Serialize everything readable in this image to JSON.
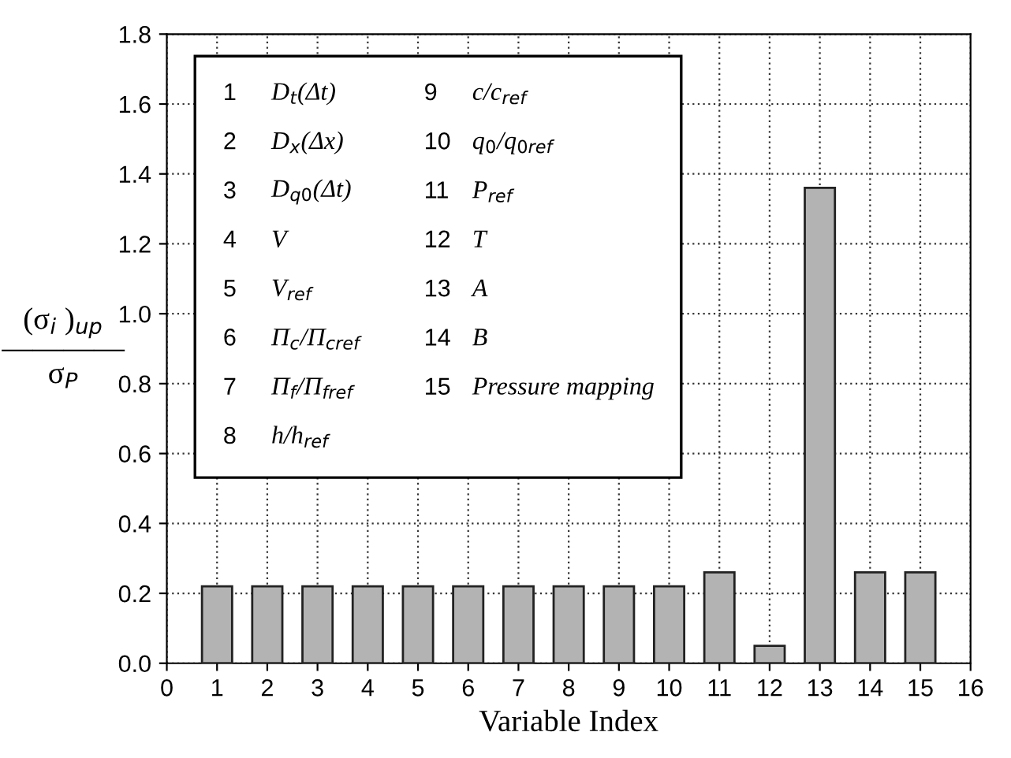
{
  "chart_data": {
    "type": "bar",
    "xlabel": "Variable Index",
    "ylabel": "(σ$_{i}$ )$_{up}$\n――――\nσ$_{P}$",
    "x": [
      1,
      2,
      3,
      4,
      5,
      6,
      7,
      8,
      9,
      10,
      11,
      12,
      13,
      14,
      15
    ],
    "values": [
      0.22,
      0.22,
      0.22,
      0.22,
      0.22,
      0.22,
      0.22,
      0.22,
      0.22,
      0.22,
      0.26,
      0.05,
      1.36,
      0.26,
      0.26
    ],
    "color": "#b3b3b3",
    "xlim": [
      0,
      16
    ],
    "xticks": [
      0,
      1,
      2,
      3,
      4,
      5,
      6,
      7,
      8,
      9,
      10,
      11,
      12,
      13,
      14,
      15,
      16
    ],
    "ylim": [
      0,
      1.8
    ],
    "yticks": [
      {
        "value": 0,
        "label": "0.0"
      },
      0.2,
      0.4,
      0.6,
      0.8,
      {
        "value": 1,
        "label": "1.0"
      },
      1.2,
      1.4,
      1.6,
      1.8
    ],
    "grid": true,
    "annotations": [
      "1",
      "D$_{t}$(Δt)",
      "2",
      "D$_{x}$(Δx)",
      "3",
      "D$_{q0}$(Δt)",
      "4",
      "V",
      "5",
      "V$_{ref}$",
      "6",
      "Π$_{c}$/Π$_{cref}$",
      "7",
      "Π$_{f}$/Π$_{fref}$",
      "8",
      "h/h$_{ref}$",
      "9",
      "c/c$_{ref}$",
      "10",
      "q$_{0}$/q$_{0ref}$",
      "11",
      "P$_{ref}$",
      "12",
      "T",
      "13",
      "A",
      "14",
      "B",
      "15",
      "Pressure mapping"
    ]
  }
}
